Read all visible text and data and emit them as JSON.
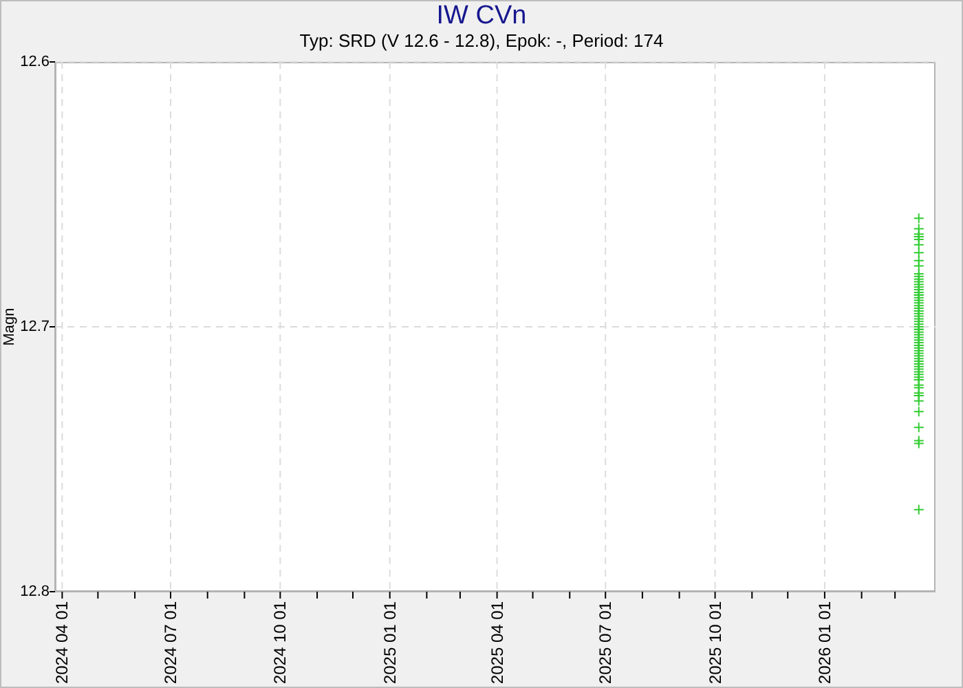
{
  "chart_data": {
    "type": "scatter",
    "title": "IW CVn",
    "subtitle": "Typ: SRD (V 12.6 - 12.8), Epok: -, Period: 174",
    "ylabel": "Magn",
    "series": [
      {
        "color": "#33cc33",
        "x": [
          "2026-03-21",
          "2026-03-21",
          "2026-03-21",
          "2026-03-21",
          "2026-03-21",
          "2026-03-21",
          "2026-03-21",
          "2026-03-21",
          "2026-03-21",
          "2026-03-21",
          "2026-03-21",
          "2026-03-21",
          "2026-03-21",
          "2026-03-21",
          "2026-03-21",
          "2026-03-21",
          "2026-03-21",
          "2026-03-21",
          "2026-03-21",
          "2026-03-21",
          "2026-03-21",
          "2026-03-21",
          "2026-03-21",
          "2026-03-21",
          "2026-03-21",
          "2026-03-21",
          "2026-03-21",
          "2026-03-21",
          "2026-03-21",
          "2026-03-21",
          "2026-03-21",
          "2026-03-21",
          "2026-03-21",
          "2026-03-21",
          "2026-03-21",
          "2026-03-21",
          "2026-03-21",
          "2026-03-21",
          "2026-03-21",
          "2026-03-21",
          "2026-03-21",
          "2026-03-21",
          "2026-03-21",
          "2026-03-21",
          "2026-03-21",
          "2026-03-21",
          "2026-03-21",
          "2026-03-21",
          "2026-03-21",
          "2026-03-21",
          "2026-03-21",
          "2026-03-21",
          "2026-03-21",
          "2026-03-21",
          "2026-03-21",
          "2026-03-21",
          "2026-03-21",
          "2026-03-21",
          "2026-03-21",
          "2026-03-21",
          "2026-03-21",
          "2026-03-21",
          "2026-03-21",
          "2026-03-21",
          "2026-03-21",
          "2026-03-21",
          "2026-03-21",
          "2026-03-21"
        ],
        "values": [
          12.659,
          12.663,
          12.665,
          12.666,
          12.666,
          12.667,
          12.669,
          12.672,
          12.675,
          12.677,
          12.68,
          12.681,
          12.682,
          12.683,
          12.684,
          12.685,
          12.686,
          12.687,
          12.688,
          12.688,
          12.689,
          12.69,
          12.691,
          12.692,
          12.693,
          12.694,
          12.694,
          12.695,
          12.696,
          12.697,
          12.698,
          12.699,
          12.7,
          12.701,
          12.701,
          12.702,
          12.703,
          12.704,
          12.705,
          12.706,
          12.707,
          12.707,
          12.708,
          12.709,
          12.71,
          12.711,
          12.712,
          12.713,
          12.714,
          12.714,
          12.715,
          12.716,
          12.717,
          12.718,
          12.719,
          12.72,
          12.72,
          12.722,
          12.723,
          12.725,
          12.726,
          12.726,
          12.728,
          12.732,
          12.738,
          12.743,
          12.744,
          12.769
        ]
      }
    ],
    "xlim": [
      "2024-03-26",
      "2026-04-04"
    ],
    "xticks": [
      {
        "value": "2024-04-01",
        "label": "2024 04 01"
      },
      {
        "value": "2024-05-01",
        "label": null
      },
      {
        "value": "2024-06-01",
        "label": null
      },
      {
        "value": "2024-07-01",
        "label": "2024 07 01"
      },
      {
        "value": "2024-08-01",
        "label": null
      },
      {
        "value": "2024-09-01",
        "label": null
      },
      {
        "value": "2024-10-01",
        "label": "2024 10 01"
      },
      {
        "value": "2024-11-01",
        "label": null
      },
      {
        "value": "2024-12-01",
        "label": null
      },
      {
        "value": "2025-01-01",
        "label": "2025 01 01"
      },
      {
        "value": "2025-02-01",
        "label": null
      },
      {
        "value": "2025-03-01",
        "label": null
      },
      {
        "value": "2025-04-01",
        "label": "2025 04 01"
      },
      {
        "value": "2025-05-01",
        "label": null
      },
      {
        "value": "2025-06-01",
        "label": null
      },
      {
        "value": "2025-07-01",
        "label": "2025 07 01"
      },
      {
        "value": "2025-08-01",
        "label": null
      },
      {
        "value": "2025-09-01",
        "label": null
      },
      {
        "value": "2025-10-01",
        "label": "2025 10 01"
      },
      {
        "value": "2025-11-01",
        "label": null
      },
      {
        "value": "2025-12-01",
        "label": null
      },
      {
        "value": "2026-01-01",
        "label": "2026 01 01"
      },
      {
        "value": "2026-02-01",
        "label": null
      },
      {
        "value": "2026-03-01",
        "label": null
      }
    ],
    "ylim": [
      12.8,
      12.6
    ],
    "yticks": [
      12.6,
      12.7,
      12.8
    ],
    "grid": true,
    "marker": "cross"
  }
}
